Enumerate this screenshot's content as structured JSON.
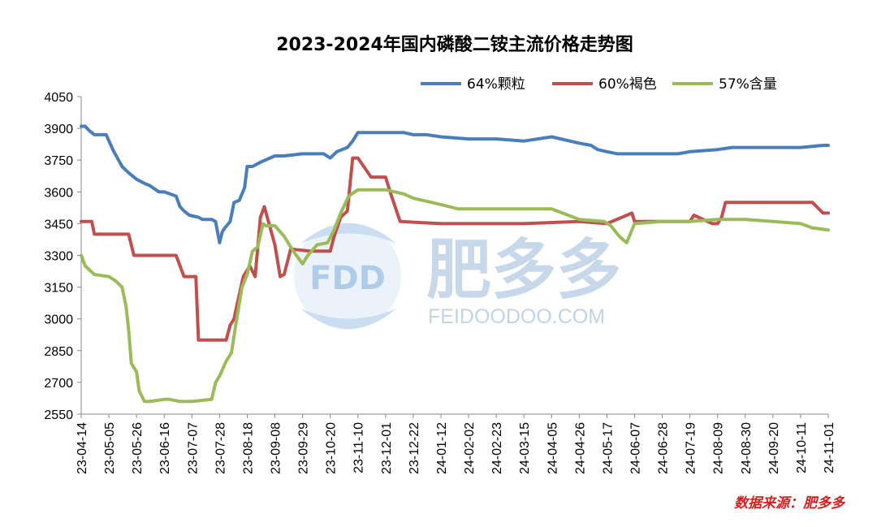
{
  "chart_data": {
    "type": "line",
    "title": "2023-2024年国内磷酸二铵主流价格走势图",
    "ylim": [
      2550,
      4050
    ],
    "y_ticks": [
      2550,
      2700,
      2850,
      3000,
      3150,
      3300,
      3450,
      3600,
      3750,
      3900,
      4050
    ],
    "x_range": [
      "2023-04-14",
      "2024-11-01"
    ],
    "x_ticks": [
      "23-04-14",
      "23-05-05",
      "23-05-26",
      "23-06-16",
      "23-07-07",
      "23-07-28",
      "23-08-18",
      "23-09-08",
      "23-09-29",
      "23-10-20",
      "23-11-10",
      "23-12-01",
      "23-12-22",
      "24-01-12",
      "24-02-02",
      "24-02-23",
      "24-03-15",
      "24-04-05",
      "24-04-26",
      "24-05-17",
      "24-06-07",
      "24-06-28",
      "24-07-19",
      "24-08-09",
      "24-08-30",
      "24-09-20",
      "24-10-11",
      "24-11-01"
    ],
    "legend_position": "top-right",
    "grid": false,
    "source": "数据来源：肥多多",
    "series": [
      {
        "name": "64%颗粒",
        "color": "#4a7ebb",
        "x": [
          "2023-04-14",
          "2023-04-17",
          "2023-04-20",
          "2023-04-24",
          "2023-05-03",
          "2023-05-08",
          "2023-05-15",
          "2023-05-20",
          "2023-05-26",
          "2023-06-01",
          "2023-06-05",
          "2023-06-12",
          "2023-06-16",
          "2023-06-25",
          "2023-06-28",
          "2023-07-01",
          "2023-07-05",
          "2023-07-12",
          "2023-07-15",
          "2023-07-22",
          "2023-07-25",
          "2023-07-28",
          "2023-07-30",
          "2023-08-01",
          "2023-08-05",
          "2023-08-08",
          "2023-08-12",
          "2023-08-16",
          "2023-08-18",
          "2023-08-22",
          "2023-08-28",
          "2023-09-08",
          "2023-09-15",
          "2023-09-29",
          "2023-10-15",
          "2023-10-20",
          "2023-10-25",
          "2023-11-02",
          "2023-11-06",
          "2023-11-10",
          "2023-12-01",
          "2023-12-15",
          "2023-12-22",
          "2024-01-01",
          "2024-01-12",
          "2024-02-02",
          "2024-02-23",
          "2024-03-15",
          "2024-04-05",
          "2024-04-26",
          "2024-05-05",
          "2024-05-10",
          "2024-05-17",
          "2024-05-25",
          "2024-06-07",
          "2024-06-28",
          "2024-07-10",
          "2024-07-19",
          "2024-08-09",
          "2024-08-20",
          "2024-08-30",
          "2024-09-20",
          "2024-10-11",
          "2024-10-28",
          "2024-11-01"
        ],
        "values": [
          3910,
          3910,
          3890,
          3870,
          3870,
          3800,
          3720,
          3690,
          3660,
          3640,
          3630,
          3600,
          3600,
          3580,
          3530,
          3510,
          3490,
          3480,
          3470,
          3470,
          3460,
          3360,
          3410,
          3430,
          3460,
          3550,
          3560,
          3620,
          3720,
          3720,
          3740,
          3770,
          3770,
          3780,
          3780,
          3760,
          3790,
          3810,
          3840,
          3880,
          3880,
          3880,
          3870,
          3870,
          3860,
          3850,
          3850,
          3840,
          3860,
          3830,
          3820,
          3800,
          3790,
          3780,
          3780,
          3780,
          3780,
          3790,
          3800,
          3810,
          3810,
          3810,
          3810,
          3820,
          3820
        ]
      },
      {
        "name": "60%褐色",
        "color": "#c0504d",
        "x": [
          "2023-04-14",
          "2023-04-22",
          "2023-04-24",
          "2023-05-20",
          "2023-05-24",
          "2023-06-25",
          "2023-07-01",
          "2023-07-10",
          "2023-07-12",
          "2023-08-02",
          "2023-08-05",
          "2023-08-08",
          "2023-08-10",
          "2023-08-15",
          "2023-08-20",
          "2023-08-24",
          "2023-08-28",
          "2023-08-31",
          "2023-09-08",
          "2023-09-12",
          "2023-09-15",
          "2023-09-20",
          "2023-10-05",
          "2023-10-20",
          "2023-10-23",
          "2023-10-28",
          "2023-11-02",
          "2023-11-06",
          "2023-11-10",
          "2023-11-20",
          "2023-12-01",
          "2023-12-05",
          "2023-12-12",
          "2024-01-12",
          "2024-02-23",
          "2024-03-15",
          "2024-04-26",
          "2024-05-17",
          "2024-06-05",
          "2024-06-07",
          "2024-07-19",
          "2024-07-22",
          "2024-08-05",
          "2024-08-09",
          "2024-08-12",
          "2024-08-15",
          "2024-09-20",
          "2024-10-20",
          "2024-10-28",
          "2024-11-01"
        ],
        "values": [
          3460,
          3460,
          3400,
          3400,
          3300,
          3300,
          3200,
          3200,
          2900,
          2900,
          2970,
          3000,
          3060,
          3200,
          3250,
          3200,
          3480,
          3530,
          3350,
          3200,
          3210,
          3330,
          3320,
          3320,
          3390,
          3480,
          3510,
          3760,
          3760,
          3670,
          3670,
          3590,
          3460,
          3450,
          3450,
          3450,
          3460,
          3450,
          3500,
          3460,
          3460,
          3490,
          3450,
          3450,
          3480,
          3550,
          3550,
          3550,
          3500,
          3500
        ]
      },
      {
        "name": "57%含量",
        "color": "#9bbb59",
        "x": [
          "2023-04-14",
          "2023-04-17",
          "2023-04-24",
          "2023-05-05",
          "2023-05-10",
          "2023-05-15",
          "2023-05-18",
          "2023-05-20",
          "2023-05-22",
          "2023-05-26",
          "2023-05-28",
          "2023-06-01",
          "2023-06-05",
          "2023-06-16",
          "2023-06-20",
          "2023-06-28",
          "2023-07-07",
          "2023-07-22",
          "2023-07-25",
          "2023-07-28",
          "2023-08-02",
          "2023-08-06",
          "2023-08-10",
          "2023-08-14",
          "2023-08-18",
          "2023-08-22",
          "2023-08-26",
          "2023-08-30",
          "2023-09-01",
          "2023-09-08",
          "2023-09-15",
          "2023-09-22",
          "2023-09-29",
          "2023-10-03",
          "2023-10-10",
          "2023-10-18",
          "2023-10-23",
          "2023-10-28",
          "2023-11-03",
          "2023-11-10",
          "2023-12-01",
          "2023-12-15",
          "2023-12-22",
          "2024-01-12",
          "2024-01-25",
          "2024-02-02",
          "2024-02-23",
          "2024-03-15",
          "2024-04-05",
          "2024-04-26",
          "2024-05-15",
          "2024-05-20",
          "2024-05-25",
          "2024-05-28",
          "2024-06-01",
          "2024-06-07",
          "2024-06-28",
          "2024-07-19",
          "2024-08-09",
          "2024-08-30",
          "2024-09-20",
          "2024-10-11",
          "2024-10-20",
          "2024-11-01"
        ],
        "values": [
          3300,
          3250,
          3210,
          3200,
          3180,
          3150,
          3060,
          2950,
          2790,
          2750,
          2660,
          2610,
          2610,
          2620,
          2620,
          2610,
          2610,
          2620,
          2700,
          2730,
          2800,
          2840,
          3000,
          3150,
          3210,
          3320,
          3340,
          3450,
          3440,
          3440,
          3390,
          3320,
          3260,
          3300,
          3350,
          3360,
          3420,
          3500,
          3580,
          3610,
          3610,
          3590,
          3570,
          3540,
          3520,
          3520,
          3520,
          3520,
          3520,
          3470,
          3460,
          3440,
          3400,
          3380,
          3360,
          3450,
          3460,
          3460,
          3470,
          3470,
          3460,
          3450,
          3430,
          3420
        ]
      }
    ]
  },
  "watermark": {
    "logo_text": "FDD",
    "name": "肥多多",
    "url": "FEIDOODOO.COM"
  },
  "colors": {
    "blue": "#4a7ebb",
    "red": "#c0504d",
    "green": "#9bbb59",
    "source_red": "#d42020"
  }
}
